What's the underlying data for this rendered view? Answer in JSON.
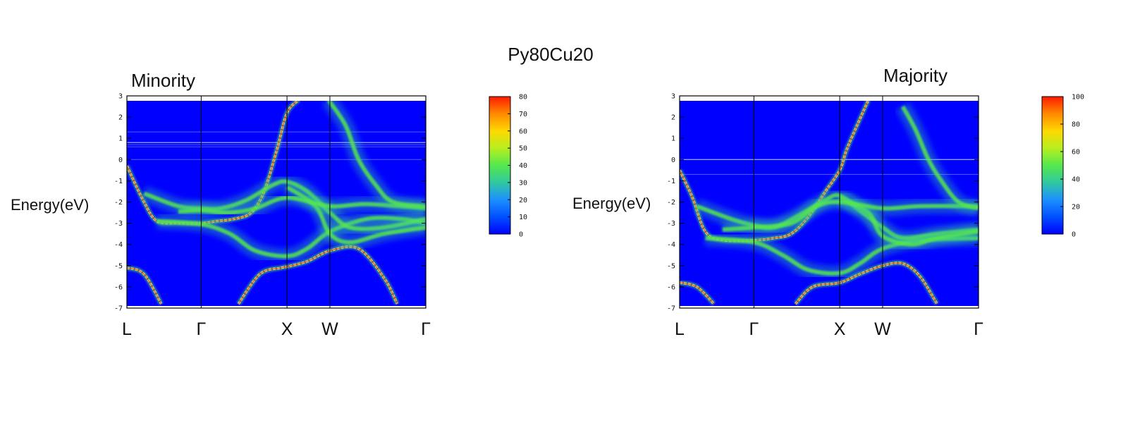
{
  "title": "Py80Cu20",
  "colors": {
    "background": "#0000ff",
    "ridge_low": "#55e84d",
    "ridge_high": "#ff3b00",
    "fermi_line": "#bcd8ff"
  },
  "chart_data": [
    {
      "type": "heatmap",
      "title": "Minority",
      "ylabel": "Energy(eV)",
      "ylim": [
        -7,
        3
      ],
      "yticks": [
        "3",
        "2",
        "1",
        "0",
        "-1",
        "-2",
        "-3",
        "-4",
        "-5",
        "-6",
        "-7"
      ],
      "kpath": [
        {
          "label": "L",
          "k": 0
        },
        {
          "label": "Γ",
          "k": 0.866
        },
        {
          "label": "X",
          "k": 1.866
        },
        {
          "label": "W",
          "k": 2.366
        },
        {
          "label": "Γ",
          "k": 3.484
        }
      ],
      "colorbar": {
        "min": 0,
        "max": 80,
        "ticks": [
          "80",
          "70",
          "60",
          "50",
          "40",
          "30",
          "20",
          "10",
          "0"
        ]
      },
      "bands": [
        {
          "points": [
            [
              0,
              -0.3
            ],
            [
              0.2,
              -2.0
            ],
            [
              0.35,
              -2.9
            ],
            [
              0.6,
              -3.0
            ],
            [
              0.866,
              -3.0
            ],
            [
              1.05,
              -2.9
            ],
            [
              1.25,
              -2.8
            ],
            [
              1.45,
              -2.5
            ],
            [
              1.6,
              -1.5
            ],
            [
              1.75,
              0.5
            ],
            [
              1.866,
              2.2
            ],
            [
              2.0,
              2.8
            ]
          ],
          "sharp": true
        },
        {
          "points": [
            [
              0,
              -5.1
            ],
            [
              0.2,
              -5.4
            ],
            [
              0.4,
              -6.8
            ]
          ],
          "sharp": true
        },
        {
          "points": [
            [
              1.3,
              -6.8
            ],
            [
              1.55,
              -5.4
            ],
            [
              1.8,
              -5.1
            ],
            [
              1.866,
              -5.05
            ],
            [
              2.1,
              -4.8
            ],
            [
              2.366,
              -4.3
            ],
            [
              2.7,
              -4.2
            ],
            [
              3.0,
              -5.6
            ],
            [
              3.15,
              -6.8
            ]
          ],
          "sharp": true
        },
        {
          "points": [
            [
              0.35,
              -2.9
            ],
            [
              0.866,
              -3.05
            ],
            [
              1.2,
              -3.5
            ],
            [
              1.5,
              -4.3
            ],
            [
              1.866,
              -4.55
            ],
            [
              2.1,
              -4.2
            ],
            [
              2.366,
              -3.4
            ],
            [
              2.8,
              -2.8
            ],
            [
              3.2,
              -2.8
            ],
            [
              3.484,
              -3.0
            ]
          ],
          "sharp": false
        },
        {
          "points": [
            [
              0.2,
              -1.6
            ],
            [
              0.6,
              -2.2
            ],
            [
              0.866,
              -2.3
            ],
            [
              1.1,
              -2.3
            ],
            [
              1.4,
              -1.9
            ],
            [
              1.7,
              -1.2
            ],
            [
              1.866,
              -1.05
            ],
            [
              2.1,
              -1.5
            ],
            [
              2.366,
              -2.5
            ],
            [
              2.6,
              -3.2
            ],
            [
              3.0,
              -3.2
            ],
            [
              3.484,
              -2.8
            ]
          ],
          "sharp": false
        },
        {
          "points": [
            [
              1.866,
              -1.3
            ],
            [
              2.2,
              -2.2
            ],
            [
              2.366,
              -3.5
            ],
            [
              2.6,
              -3.9
            ],
            [
              3.0,
              -3.5
            ],
            [
              3.484,
              -3.2
            ]
          ],
          "sharp": false
        },
        {
          "points": [
            [
              0.6,
              -2.45
            ],
            [
              0.866,
              -2.4
            ],
            [
              1.2,
              -2.5
            ],
            [
              1.5,
              -2.3
            ],
            [
              1.866,
              -1.8
            ],
            [
              2.366,
              -2.2
            ],
            [
              2.8,
              -2.1
            ],
            [
              3.484,
              -2.3
            ]
          ],
          "sharp": false
        },
        {
          "points": [
            [
              2.35,
              2.8
            ],
            [
              2.55,
              1.6
            ],
            [
              2.7,
              0.0
            ],
            [
              2.9,
              -1.2
            ],
            [
              3.1,
              -2.0
            ],
            [
              3.484,
              -2.2
            ]
          ],
          "sharp": false
        }
      ],
      "flat_levels": [
        0.8,
        0.7,
        0.6,
        1.3,
        0.0
      ]
    },
    {
      "type": "heatmap",
      "title": "Majority",
      "ylabel": "Energy(eV)",
      "ylim": [
        -7,
        3
      ],
      "yticks": [
        "3",
        "2",
        "1",
        "0",
        "-1",
        "-2",
        "-3",
        "-4",
        "-5",
        "-6",
        "-7"
      ],
      "kpath": [
        {
          "label": "L",
          "k": 0
        },
        {
          "label": "Γ",
          "k": 0.866
        },
        {
          "label": "X",
          "k": 1.866
        },
        {
          "label": "W",
          "k": 2.366
        },
        {
          "label": "Γ",
          "k": 3.484
        }
      ],
      "colorbar": {
        "min": 0,
        "max": 100,
        "ticks": [
          "100",
          "80",
          "60",
          "40",
          "20",
          "0"
        ]
      },
      "bands": [
        {
          "points": [
            [
              0,
              -0.5
            ],
            [
              0.15,
              -1.8
            ],
            [
              0.3,
              -3.4
            ],
            [
              0.5,
              -3.8
            ],
            [
              0.866,
              -3.8
            ],
            [
              1.1,
              -3.7
            ],
            [
              1.3,
              -3.5
            ],
            [
              1.5,
              -2.7
            ],
            [
              1.7,
              -1.5
            ],
            [
              1.866,
              -0.5
            ],
            [
              1.95,
              0.5
            ],
            [
              2.1,
              1.9
            ],
            [
              2.2,
              2.8
            ]
          ],
          "sharp": true
        },
        {
          "points": [
            [
              0,
              -5.8
            ],
            [
              0.2,
              -6.0
            ],
            [
              0.4,
              -6.8
            ]
          ],
          "sharp": true
        },
        {
          "points": [
            [
              1.35,
              -6.8
            ],
            [
              1.55,
              -6.0
            ],
            [
              1.866,
              -5.8
            ],
            [
              2.1,
              -5.4
            ],
            [
              2.366,
              -5.0
            ],
            [
              2.6,
              -4.9
            ],
            [
              2.8,
              -5.5
            ],
            [
              3.0,
              -6.8
            ]
          ],
          "sharp": true
        },
        {
          "points": [
            [
              0.3,
              -3.7
            ],
            [
              0.866,
              -3.9
            ],
            [
              1.2,
              -4.5
            ],
            [
              1.5,
              -5.2
            ],
            [
              1.866,
              -5.35
            ],
            [
              2.1,
              -4.9
            ],
            [
              2.366,
              -4.2
            ],
            [
              2.8,
              -3.8
            ],
            [
              3.484,
              -3.7
            ]
          ],
          "sharp": false
        },
        {
          "points": [
            [
              0.2,
              -2.2
            ],
            [
              0.6,
              -2.8
            ],
            [
              0.866,
              -3.1
            ],
            [
              1.1,
              -3.2
            ],
            [
              1.4,
              -2.6
            ],
            [
              1.7,
              -1.9
            ],
            [
              1.866,
              -1.7
            ],
            [
              2.1,
              -2.4
            ],
            [
              2.366,
              -3.2
            ],
            [
              2.6,
              -3.7
            ],
            [
              3.0,
              -3.5
            ],
            [
              3.484,
              -3.3
            ]
          ],
          "sharp": false
        },
        {
          "points": [
            [
              1.866,
              -1.8
            ],
            [
              2.2,
              -2.5
            ],
            [
              2.366,
              -3.6
            ],
            [
              2.7,
              -4.0
            ],
            [
              3.0,
              -3.7
            ],
            [
              3.484,
              -3.4
            ]
          ],
          "sharp": false
        },
        {
          "points": [
            [
              0.5,
              -3.3
            ],
            [
              0.866,
              -3.2
            ],
            [
              1.3,
              -3.0
            ],
            [
              1.6,
              -2.2
            ],
            [
              1.866,
              -2.0
            ],
            [
              2.366,
              -2.3
            ],
            [
              2.8,
              -2.2
            ],
            [
              3.484,
              -2.2
            ]
          ],
          "sharp": false
        },
        {
          "points": [
            [
              2.6,
              2.5
            ],
            [
              2.75,
              1.4
            ],
            [
              2.9,
              0.0
            ],
            [
              3.05,
              -1.0
            ],
            [
              3.25,
              -2.0
            ],
            [
              3.484,
              -2.3
            ]
          ],
          "sharp": false
        }
      ],
      "flat_levels": [
        0.0,
        -0.7
      ]
    }
  ]
}
